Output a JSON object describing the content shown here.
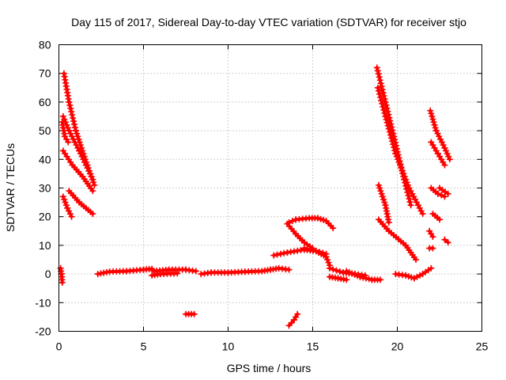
{
  "chart_data": {
    "type": "scatter",
    "title": "Day 115 of 2017, Sidereal Day-to-day VTEC variation (SDTVAR) for receiver stjo",
    "xlabel": "GPS time / hours",
    "ylabel": "SDTVAR / TECUs",
    "xlim": [
      0,
      25
    ],
    "ylim": [
      -20,
      80
    ],
    "x_ticks": [
      "0",
      "5",
      "10",
      "15",
      "20",
      "25"
    ],
    "y_ticks": [
      "-20",
      "-10",
      "0",
      "10",
      "20",
      "30",
      "40",
      "50",
      "60",
      "70",
      "80"
    ],
    "grid": true,
    "marker": "plus",
    "colors": {
      "series": "#ff0000",
      "grid": "#a0a0a0",
      "frame": "#000000"
    },
    "segments": [
      [
        [
          0.3,
          70
        ],
        [
          0.6,
          60
        ],
        [
          1.0,
          50
        ],
        [
          1.5,
          41
        ],
        [
          2.1,
          31
        ]
      ],
      [
        [
          0.25,
          55
        ],
        [
          0.6,
          50
        ],
        [
          1.2,
          43
        ],
        [
          2.0,
          33
        ]
      ],
      [
        [
          0.2,
          53
        ],
        [
          0.35,
          48
        ],
        [
          0.55,
          46
        ]
      ],
      [
        [
          0.25,
          43
        ],
        [
          0.8,
          38
        ],
        [
          1.4,
          34
        ],
        [
          2.0,
          29
        ]
      ],
      [
        [
          0.6,
          29
        ],
        [
          1.2,
          25
        ],
        [
          2.0,
          21
        ]
      ],
      [
        [
          0.25,
          27
        ],
        [
          0.5,
          23
        ],
        [
          0.75,
          20
        ]
      ],
      [
        [
          0.1,
          2
        ],
        [
          0.15,
          0
        ],
        [
          0.2,
          -3
        ]
      ],
      [
        [
          2.3,
          0
        ],
        [
          3.0,
          0.8
        ],
        [
          4.0,
          1.0
        ],
        [
          5.0,
          1.5
        ],
        [
          5.5,
          1.8
        ]
      ],
      [
        [
          5.6,
          1.0
        ],
        [
          6.5,
          1.5
        ],
        [
          7.5,
          1.5
        ],
        [
          8.1,
          1.0
        ]
      ],
      [
        [
          5.5,
          -0.5
        ],
        [
          6.0,
          0
        ],
        [
          7.0,
          0.2
        ]
      ],
      [
        [
          7.5,
          -14
        ],
        [
          8.0,
          -14
        ]
      ],
      [
        [
          8.4,
          0
        ],
        [
          9.0,
          0.5
        ],
        [
          10.0,
          0.5
        ],
        [
          11.0,
          0.8
        ],
        [
          12.0,
          1.0
        ],
        [
          12.5,
          1.5
        ],
        [
          13.0,
          2.0
        ],
        [
          13.6,
          1.5
        ]
      ],
      [
        [
          12.7,
          6.5
        ],
        [
          13.5,
          7.5
        ],
        [
          14.5,
          8.5
        ],
        [
          15.2,
          8.0
        ],
        [
          15.8,
          7.0
        ]
      ],
      [
        [
          14.5,
          9.0
        ],
        [
          15.2,
          8.0
        ],
        [
          15.8,
          6.0
        ],
        [
          16.0,
          3.0
        ]
      ],
      [
        [
          13.6,
          18
        ],
        [
          14.0,
          19
        ],
        [
          14.8,
          19.5
        ],
        [
          15.3,
          19.5
        ],
        [
          15.8,
          18.5
        ],
        [
          16.2,
          16
        ]
      ],
      [
        [
          13.5,
          17.5
        ],
        [
          14.0,
          14
        ],
        [
          14.5,
          11
        ],
        [
          15.0,
          9
        ]
      ],
      [
        [
          14.1,
          -14
        ],
        [
          13.9,
          -16
        ],
        [
          13.6,
          -18
        ]
      ],
      [
        [
          16.0,
          2.0
        ],
        [
          16.8,
          0.5
        ],
        [
          17.5,
          0
        ],
        [
          18.1,
          -0.5
        ]
      ],
      [
        [
          16.0,
          -1
        ],
        [
          16.5,
          -1.5
        ],
        [
          17.0,
          -2
        ]
      ],
      [
        [
          17.0,
          1.0
        ],
        [
          17.8,
          -1.0
        ],
        [
          18.5,
          -2.0
        ],
        [
          19.0,
          -2.0
        ]
      ],
      [
        [
          18.8,
          72
        ],
        [
          19.3,
          60
        ],
        [
          19.8,
          48
        ],
        [
          20.4,
          33
        ],
        [
          20.8,
          24
        ]
      ],
      [
        [
          18.85,
          65
        ],
        [
          19.3,
          55
        ],
        [
          19.9,
          42
        ],
        [
          20.7,
          30
        ],
        [
          21.5,
          21
        ]
      ],
      [
        [
          18.9,
          31
        ],
        [
          19.3,
          24
        ],
        [
          19.5,
          18
        ]
      ],
      [
        [
          18.9,
          19
        ],
        [
          19.5,
          15
        ],
        [
          20.5,
          10
        ],
        [
          21.1,
          5
        ]
      ],
      [
        [
          19.9,
          0
        ],
        [
          20.5,
          -0.5
        ],
        [
          21.0,
          -1.5
        ],
        [
          21.5,
          0
        ],
        [
          22.0,
          2
        ]
      ],
      [
        [
          21.95,
          57
        ],
        [
          22.3,
          50
        ],
        [
          22.8,
          44
        ],
        [
          23.1,
          40
        ]
      ],
      [
        [
          22.0,
          46
        ],
        [
          22.4,
          42
        ],
        [
          22.8,
          38
        ]
      ],
      [
        [
          22.0,
          30
        ],
        [
          22.4,
          28
        ],
        [
          22.8,
          27
        ]
      ],
      [
        [
          22.5,
          30
        ],
        [
          23.0,
          28
        ]
      ],
      [
        [
          22.1,
          21
        ],
        [
          22.5,
          19
        ]
      ],
      [
        [
          21.9,
          15
        ],
        [
          22.1,
          13
        ]
      ],
      [
        [
          21.9,
          9
        ],
        [
          22.1,
          9
        ]
      ],
      [
        [
          22.8,
          12
        ],
        [
          23.0,
          11
        ]
      ]
    ]
  }
}
